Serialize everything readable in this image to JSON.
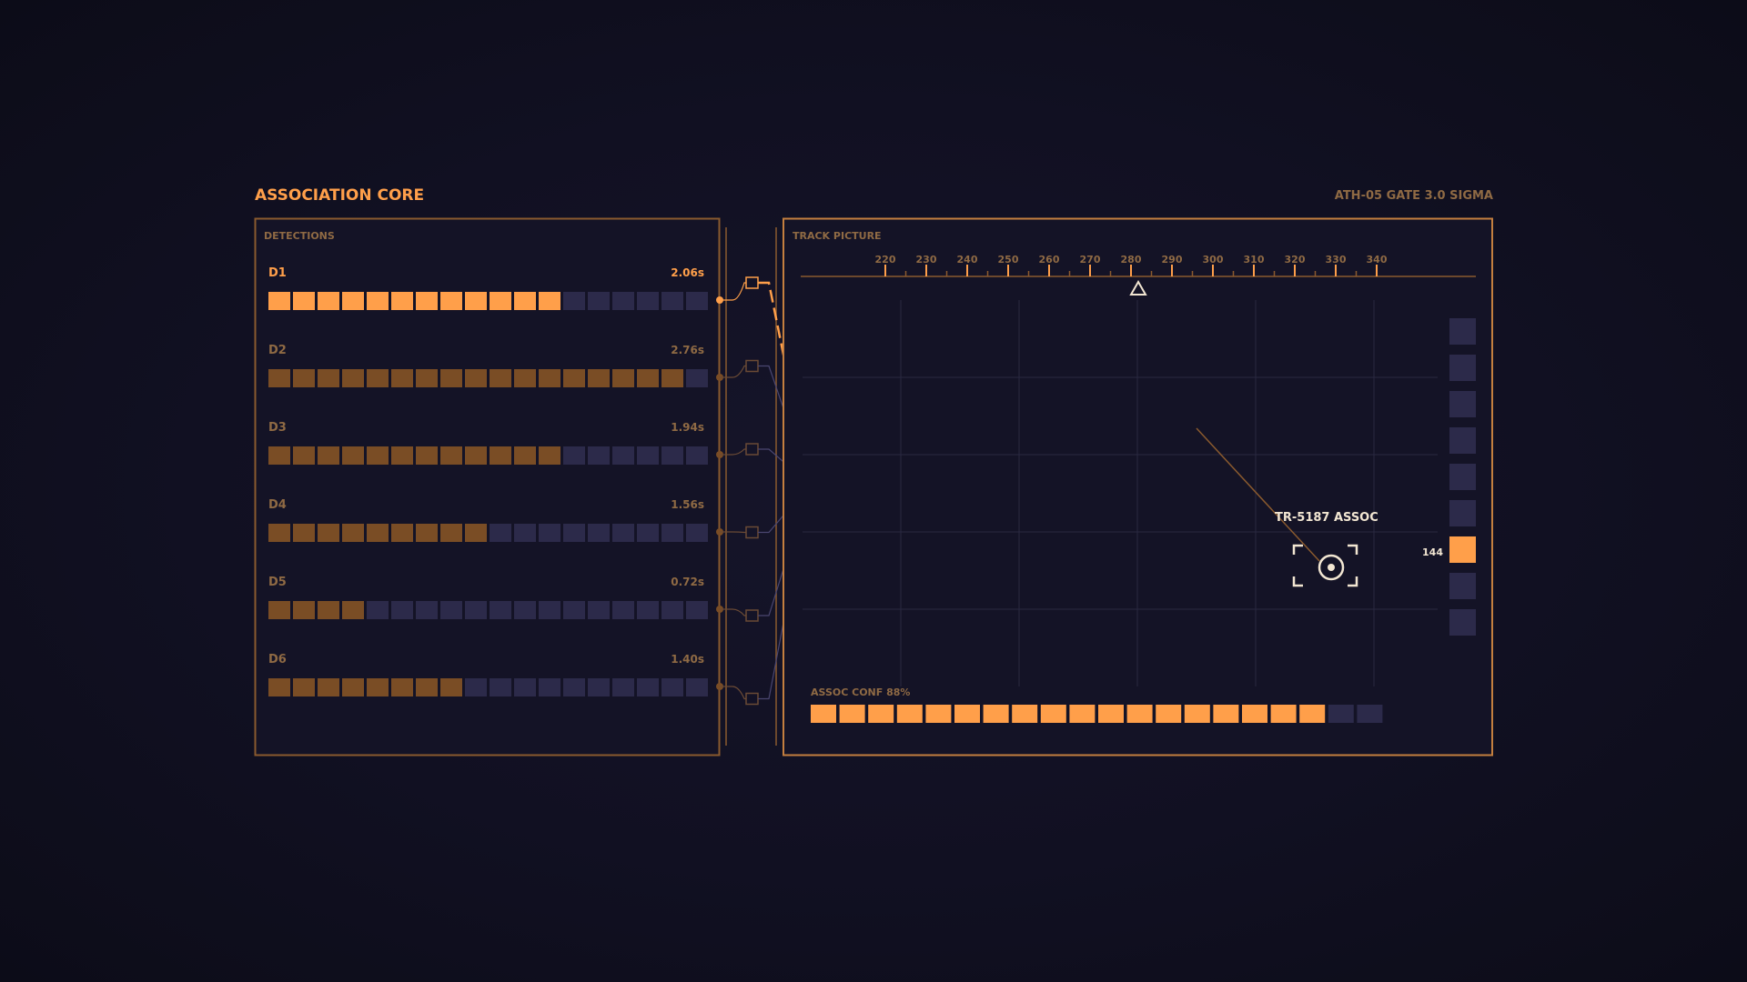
{
  "header": {
    "title": "ASSOCIATION CORE",
    "status": "ATH-05  GATE 3.0 SIGMA"
  },
  "detections": {
    "title": "DETECTIONS",
    "segments_total": 18,
    "items": [
      {
        "id": "D1",
        "time": "2.06s",
        "filled": 12,
        "selected": true
      },
      {
        "id": "D2",
        "time": "2.76s",
        "filled": 17,
        "selected": false
      },
      {
        "id": "D3",
        "time": "1.94s",
        "filled": 12,
        "selected": false
      },
      {
        "id": "D4",
        "time": "1.56s",
        "filled": 9,
        "selected": false
      },
      {
        "id": "D5",
        "time": "0.72s",
        "filled": 4,
        "selected": false
      },
      {
        "id": "D6",
        "time": "1.40s",
        "filled": 8,
        "selected": false
      }
    ]
  },
  "track": {
    "title": "TRACK PICTURE",
    "scale_ticks": [
      "220",
      "230",
      "240",
      "250",
      "260",
      "270",
      "280",
      "290",
      "300",
      "310",
      "320",
      "330",
      "340"
    ],
    "marker_value": "280",
    "target_label": "TR-5187  ASSOC",
    "level_label": "144",
    "level_total": 9,
    "level_active": 7,
    "conf_label": "ASSOC CONF 88%",
    "conf_total": 20,
    "conf_filled": 18
  },
  "colors": {
    "accent": "#ff9f4a",
    "accent_dim": "#7a4d25",
    "frame": "#8a5a2e",
    "empty": "#2c2a4a",
    "panel": "#141326",
    "link": "#4a4670",
    "grid": "#2a2840",
    "label_dim": "#8f6a44",
    "text_light": "#f2e6d2"
  }
}
